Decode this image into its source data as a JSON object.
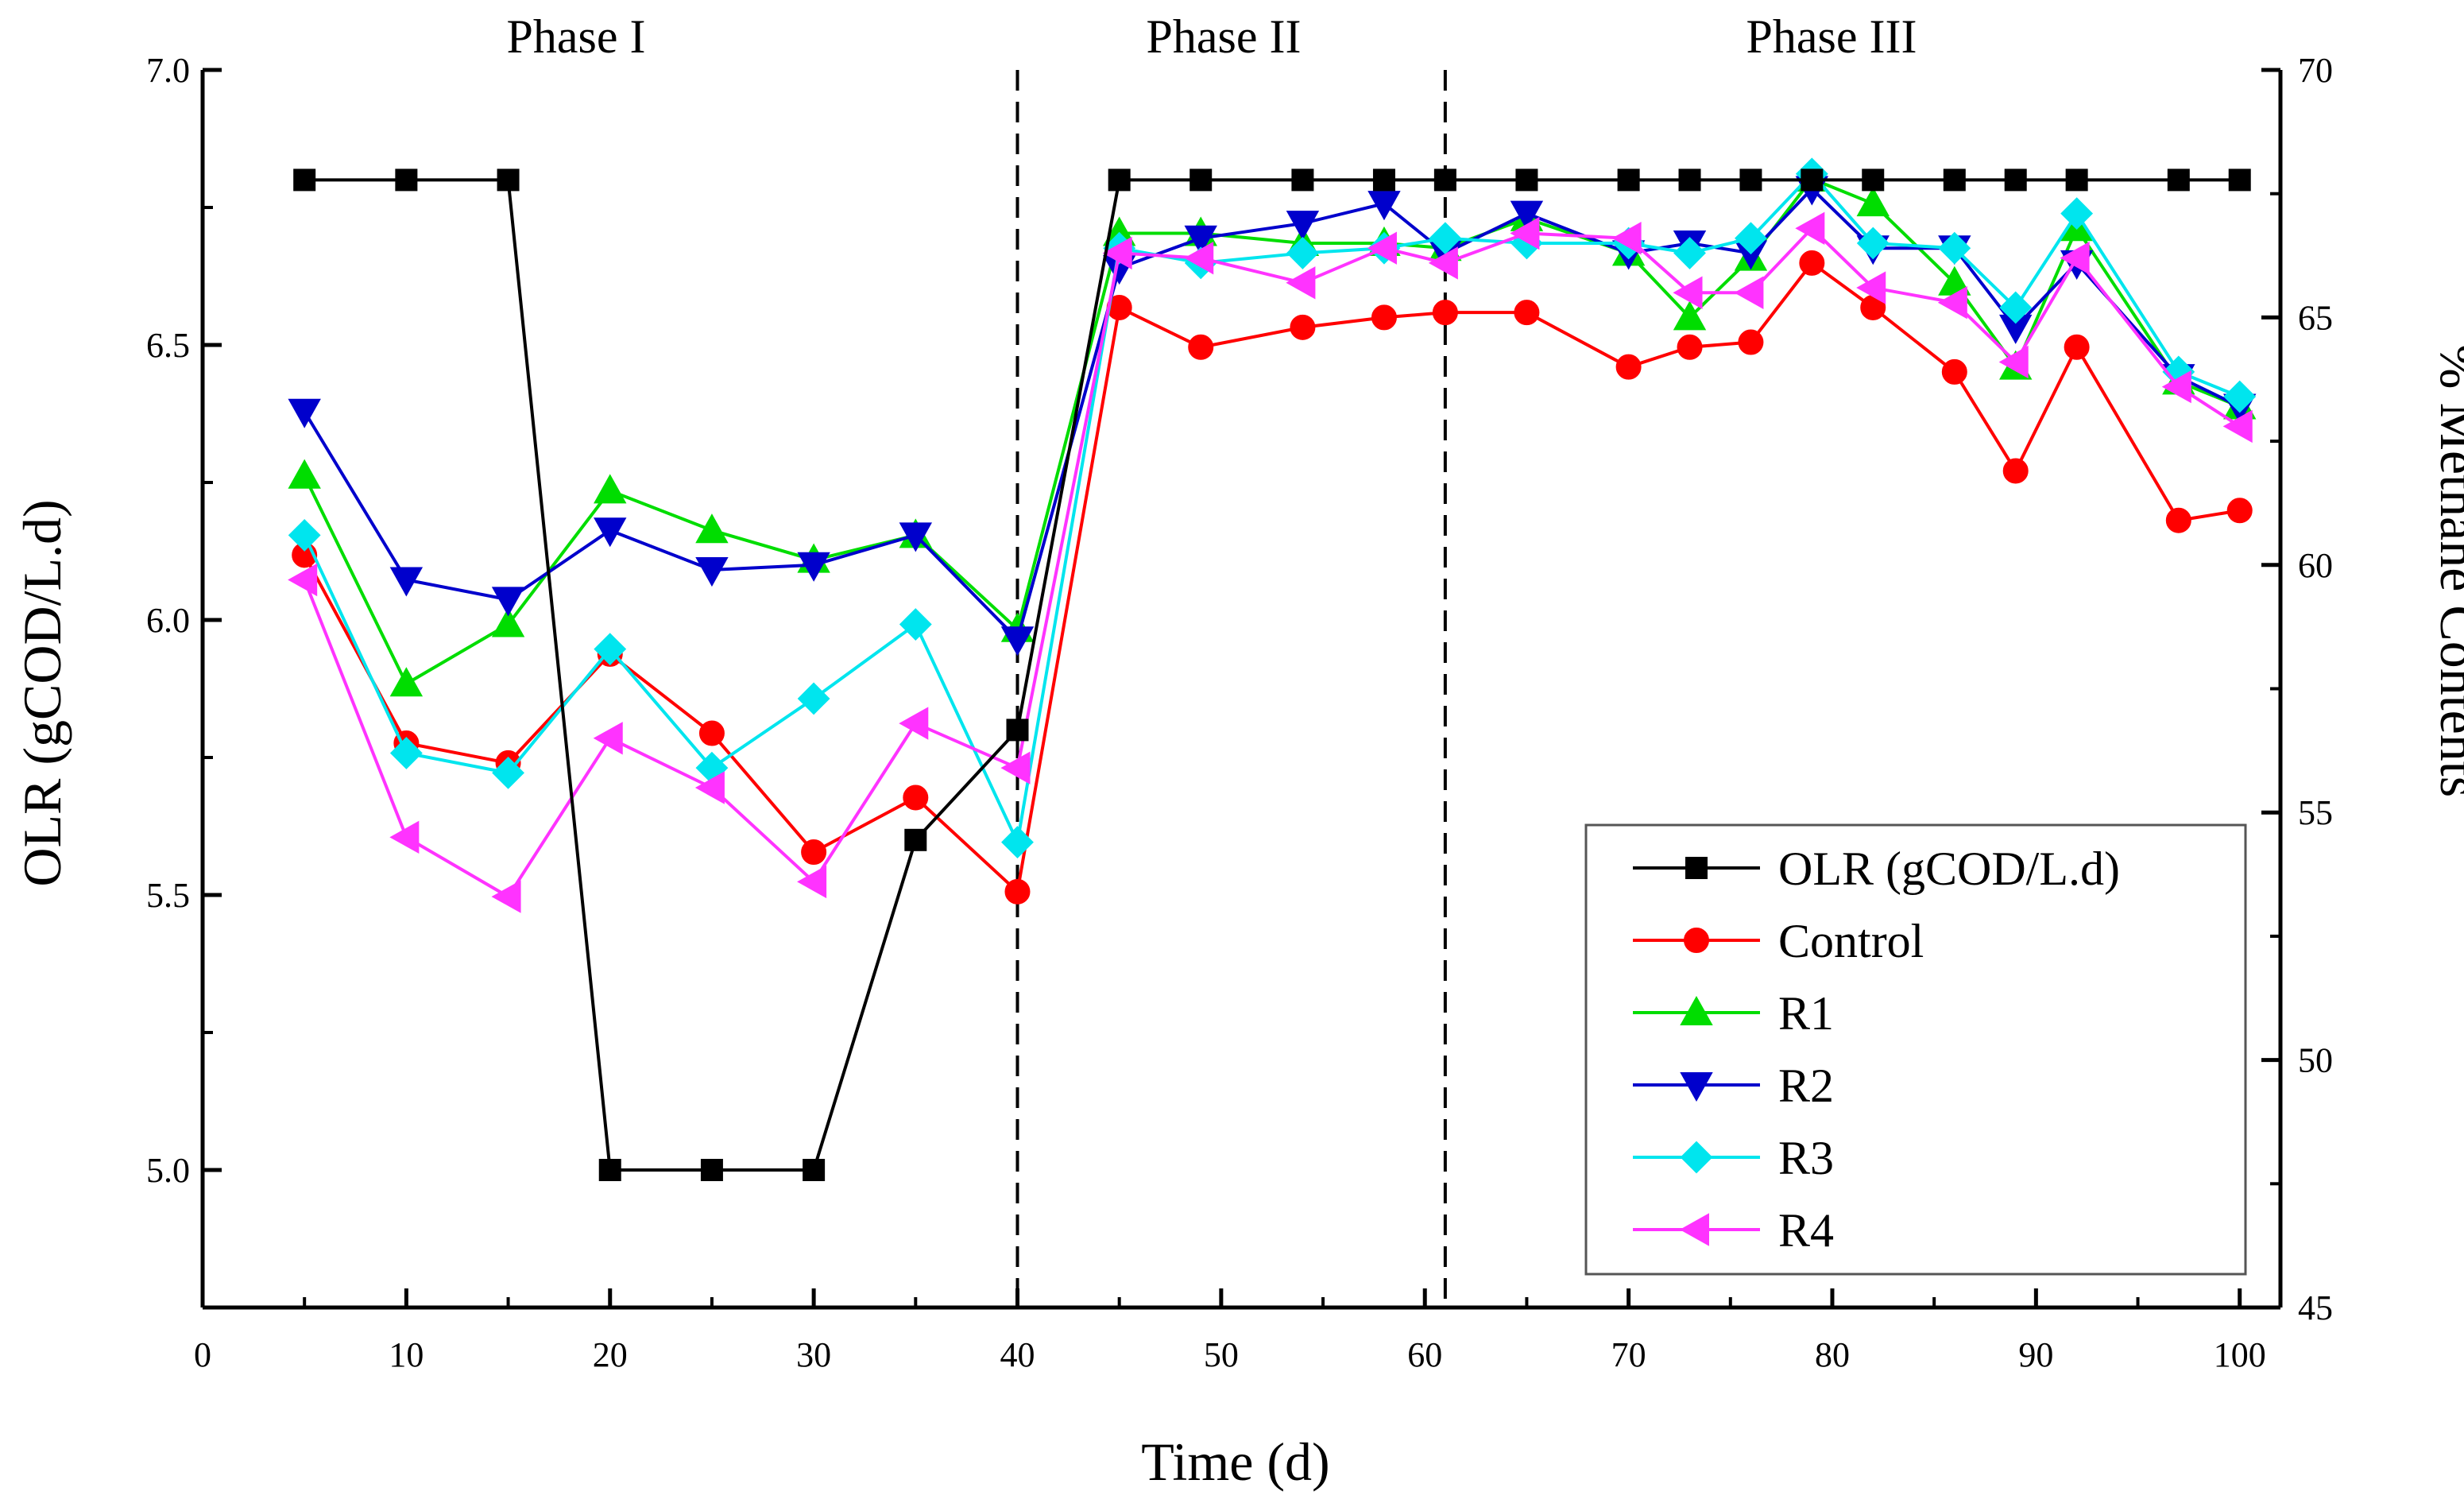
{
  "chart_data": {
    "type": "line",
    "x": [
      5,
      10,
      15,
      20,
      25,
      30,
      35,
      40,
      45,
      49,
      54,
      58,
      61,
      65,
      70,
      73,
      76,
      79,
      82,
      86,
      89,
      92,
      97,
      100
    ],
    "xlabel": "Time (d)",
    "ylabel_left": "OLR (gCOD/L.d)",
    "ylabel_right": "% Methane Contents",
    "xlim": [
      0,
      102
    ],
    "ylim_left": [
      4.75,
      7.0
    ],
    "ylim_right": [
      45,
      70
    ],
    "xticks": [
      0,
      10,
      20,
      30,
      40,
      50,
      60,
      70,
      80,
      90,
      100
    ],
    "xtick_labels": [
      "0",
      "10",
      "20",
      "30",
      "40",
      "50",
      "60",
      "70",
      "80",
      "90",
      "100"
    ],
    "yticks_left": [
      5.0,
      5.5,
      6.0,
      6.5,
      7.0
    ],
    "ytick_labels_left": [
      "5.0",
      "5.5",
      "6.0",
      "6.5",
      "7.0"
    ],
    "yticks_right": [
      45,
      50,
      55,
      60,
      65,
      70
    ],
    "ytick_labels_right": [
      "45",
      "50",
      "55",
      "60",
      "65",
      "70"
    ],
    "phases": [
      {
        "label": "Phase I",
        "start": 0,
        "end": 40
      },
      {
        "label": "Phase II",
        "start": 40,
        "end": 61
      },
      {
        "label": "Phase III",
        "start": 61,
        "end": 102
      }
    ],
    "phase_boundaries": [
      40,
      61
    ],
    "olr_series": {
      "name": "OLR (gCOD/L.d)",
      "axis": "left",
      "color": "#000000",
      "marker": "square",
      "x": [
        5,
        10,
        15,
        20,
        25,
        30,
        35,
        40,
        45,
        49,
        54,
        58,
        61,
        65,
        70,
        73,
        76,
        79,
        82,
        86,
        89,
        92,
        97,
        100
      ],
      "values": [
        6.8,
        6.8,
        6.8,
        5.0,
        5.0,
        5.0,
        5.6,
        5.8,
        6.8,
        6.8,
        6.8,
        6.8,
        6.8,
        6.8,
        6.8,
        6.8,
        6.8,
        6.8,
        6.8,
        6.8,
        6.8,
        6.8,
        6.8,
        6.8
      ]
    },
    "series": [
      {
        "name": "Control",
        "axis": "right",
        "color": "#ff0000",
        "marker": "circle",
        "values": [
          60.2,
          56.4,
          56.0,
          58.2,
          56.6,
          54.2,
          55.3,
          53.4,
          65.2,
          64.4,
          64.8,
          65.0,
          65.1,
          65.1,
          64.0,
          64.4,
          64.5,
          66.1,
          65.2,
          63.9,
          61.9,
          64.4,
          60.9,
          61.1
        ]
      },
      {
        "name": "R1",
        "axis": "right",
        "color": "#00dd00",
        "marker": "triangle-up",
        "values": [
          61.8,
          57.6,
          58.8,
          61.5,
          60.7,
          60.1,
          60.6,
          58.7,
          66.7,
          66.7,
          66.5,
          66.5,
          66.4,
          67.0,
          66.3,
          65.0,
          66.2,
          67.8,
          67.3,
          65.7,
          64.0,
          66.8,
          63.7,
          63.2
        ]
      },
      {
        "name": "R2",
        "axis": "right",
        "color": "#0000cc",
        "marker": "triangle-down",
        "values": [
          63.1,
          59.7,
          59.3,
          60.7,
          59.9,
          60.0,
          60.6,
          58.5,
          66.0,
          66.6,
          66.9,
          67.3,
          66.3,
          67.1,
          66.3,
          66.5,
          66.3,
          67.6,
          66.4,
          66.4,
          64.8,
          66.1,
          63.8,
          63.2
        ]
      },
      {
        "name": "R3",
        "axis": "right",
        "color": "#00e5ee",
        "marker": "diamond",
        "values": [
          60.6,
          56.2,
          55.8,
          58.3,
          55.9,
          57.3,
          58.8,
          54.4,
          66.4,
          66.1,
          66.3,
          66.4,
          66.6,
          66.5,
          66.5,
          66.3,
          66.6,
          67.9,
          66.5,
          66.4,
          65.2,
          67.1,
          63.9,
          63.4
        ]
      },
      {
        "name": "R4",
        "axis": "right",
        "color": "#ff33ff",
        "marker": "triangle-left",
        "values": [
          59.7,
          54.5,
          53.3,
          56.5,
          55.5,
          53.6,
          56.8,
          55.9,
          66.3,
          66.2,
          65.7,
          66.4,
          66.1,
          66.7,
          66.6,
          65.5,
          65.5,
          66.8,
          65.6,
          65.3,
          64.1,
          66.2,
          63.6,
          62.8
        ]
      }
    ],
    "legend": {
      "position": "bottom-right",
      "entries": [
        "OLR (gCOD/L.d)",
        "Control",
        "R1",
        "R2",
        "R3",
        "R4"
      ]
    }
  }
}
